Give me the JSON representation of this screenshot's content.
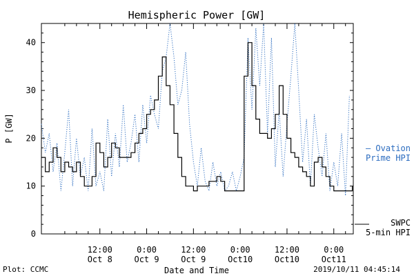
{
  "footer": {
    "plot_credit": "Plot: CCMC",
    "timestamp": "2019/10/11 04:45:14"
  },
  "chart_data": {
    "type": "line",
    "title": "Hemispheric Power [GW]",
    "xlabel": "Date and Time",
    "ylabel": "P [GW]",
    "ylim": [
      0,
      44
    ],
    "xlim": [
      "2019-10-07T21:00",
      "2019-10-11T05:00"
    ],
    "y_ticks": [
      0,
      10,
      20,
      30,
      40
    ],
    "x_ticks": [
      {
        "at": "2019-10-08T12:00",
        "line1": "12:00",
        "line2": "Oct 8"
      },
      {
        "at": "2019-10-09T00:00",
        "line1": "0:00",
        "line2": "Oct 9"
      },
      {
        "at": "2019-10-09T12:00",
        "line1": "12:00",
        "line2": "Oct 9"
      },
      {
        "at": "2019-10-10T00:00",
        "line1": "0:00",
        "line2": "Oct10"
      },
      {
        "at": "2019-10-10T12:00",
        "line1": "12:00",
        "line2": "Oct10"
      },
      {
        "at": "2019-10-11T00:00",
        "line1": "0:00",
        "line2": "Oct11"
      }
    ],
    "grid": false,
    "legend_placement": "right",
    "series": [
      {
        "name_line1": "Ovation",
        "name_line2": "Prime HPI",
        "legend_marker": "–",
        "color": "#2a6bbf",
        "style": "dotted",
        "x": [
          "2019-10-07T21:00",
          "2019-10-07T22:00",
          "2019-10-07T23:00",
          "2019-10-08T00:00",
          "2019-10-08T01:00",
          "2019-10-08T02:00",
          "2019-10-08T03:00",
          "2019-10-08T04:00",
          "2019-10-08T05:00",
          "2019-10-08T06:00",
          "2019-10-08T07:00",
          "2019-10-08T08:00",
          "2019-10-08T09:00",
          "2019-10-08T10:00",
          "2019-10-08T11:00",
          "2019-10-08T12:00",
          "2019-10-08T13:00",
          "2019-10-08T14:00",
          "2019-10-08T15:00",
          "2019-10-08T16:00",
          "2019-10-08T17:00",
          "2019-10-08T18:00",
          "2019-10-08T19:00",
          "2019-10-08T20:00",
          "2019-10-08T21:00",
          "2019-10-08T22:00",
          "2019-10-08T23:00",
          "2019-10-09T00:00",
          "2019-10-09T01:00",
          "2019-10-09T02:00",
          "2019-10-09T03:00",
          "2019-10-09T04:00",
          "2019-10-09T05:00",
          "2019-10-09T06:00",
          "2019-10-09T07:00",
          "2019-10-09T08:00",
          "2019-10-09T09:00",
          "2019-10-09T10:00",
          "2019-10-09T11:00",
          "2019-10-09T12:00",
          "2019-10-09T13:00",
          "2019-10-09T14:00",
          "2019-10-09T15:00",
          "2019-10-09T16:00",
          "2019-10-09T17:00",
          "2019-10-09T18:00",
          "2019-10-09T19:00",
          "2019-10-09T20:00",
          "2019-10-09T21:00",
          "2019-10-09T22:00",
          "2019-10-09T23:00",
          "2019-10-10T00:00",
          "2019-10-10T01:00",
          "2019-10-10T02:00",
          "2019-10-10T03:00",
          "2019-10-10T04:00",
          "2019-10-10T05:00",
          "2019-10-10T06:00",
          "2019-10-10T07:00",
          "2019-10-10T08:00",
          "2019-10-10T09:00",
          "2019-10-10T10:00",
          "2019-10-10T11:00",
          "2019-10-10T12:00",
          "2019-10-10T13:00",
          "2019-10-10T14:00",
          "2019-10-10T15:00",
          "2019-10-10T16:00",
          "2019-10-10T17:00",
          "2019-10-10T18:00",
          "2019-10-10T19:00",
          "2019-10-10T20:00",
          "2019-10-10T21:00",
          "2019-10-10T22:00",
          "2019-10-10T23:00",
          "2019-10-11T00:00",
          "2019-10-11T01:00",
          "2019-10-11T02:00",
          "2019-10-11T03:00",
          "2019-10-11T04:00"
        ],
        "values": [
          23,
          17,
          21,
          13,
          19,
          9,
          17,
          26,
          10,
          20,
          12,
          16,
          9,
          22,
          10,
          13,
          9,
          24,
          12,
          21,
          14,
          27,
          15,
          19,
          25,
          15,
          27,
          19,
          29,
          25,
          22,
          34,
          37,
          44,
          37,
          27,
          30,
          38,
          23,
          15,
          10,
          18,
          11,
          9,
          15,
          10,
          13,
          9,
          10,
          13,
          9,
          12,
          16,
          41,
          26,
          43,
          31,
          44,
          21,
          41,
          14,
          26,
          12,
          23,
          33,
          44,
          30,
          15,
          24,
          10,
          25,
          18,
          12,
          21,
          9,
          15,
          10,
          21,
          8,
          29
        ]
      },
      {
        "name_line1": "SWPC",
        "name_line2": "5-min HPI",
        "color": "#000000",
        "style": "solid",
        "x": [
          "2019-10-07T21:00",
          "2019-10-07T22:00",
          "2019-10-07T23:00",
          "2019-10-08T00:00",
          "2019-10-08T01:00",
          "2019-10-08T02:00",
          "2019-10-08T03:00",
          "2019-10-08T04:00",
          "2019-10-08T05:00",
          "2019-10-08T06:00",
          "2019-10-08T07:00",
          "2019-10-08T08:00",
          "2019-10-08T09:00",
          "2019-10-08T10:00",
          "2019-10-08T11:00",
          "2019-10-08T12:00",
          "2019-10-08T13:00",
          "2019-10-08T14:00",
          "2019-10-08T15:00",
          "2019-10-08T16:00",
          "2019-10-08T17:00",
          "2019-10-08T18:00",
          "2019-10-08T19:00",
          "2019-10-08T20:00",
          "2019-10-08T21:00",
          "2019-10-08T22:00",
          "2019-10-08T23:00",
          "2019-10-09T00:00",
          "2019-10-09T01:00",
          "2019-10-09T02:00",
          "2019-10-09T03:00",
          "2019-10-09T04:00",
          "2019-10-09T05:00",
          "2019-10-09T06:00",
          "2019-10-09T07:00",
          "2019-10-09T08:00",
          "2019-10-09T09:00",
          "2019-10-09T10:00",
          "2019-10-09T11:00",
          "2019-10-09T12:00",
          "2019-10-09T13:00",
          "2019-10-09T14:00",
          "2019-10-09T15:00",
          "2019-10-09T16:00",
          "2019-10-09T17:00",
          "2019-10-09T18:00",
          "2019-10-09T19:00",
          "2019-10-09T20:00",
          "2019-10-09T21:00",
          "2019-10-09T22:00",
          "2019-10-09T23:00",
          "2019-10-10T00:00",
          "2019-10-10T01:00",
          "2019-10-10T02:00",
          "2019-10-10T03:00",
          "2019-10-10T04:00",
          "2019-10-10T05:00",
          "2019-10-10T06:00",
          "2019-10-10T07:00",
          "2019-10-10T08:00",
          "2019-10-10T09:00",
          "2019-10-10T10:00",
          "2019-10-10T11:00",
          "2019-10-10T12:00",
          "2019-10-10T13:00",
          "2019-10-10T14:00",
          "2019-10-10T15:00",
          "2019-10-10T16:00",
          "2019-10-10T17:00",
          "2019-10-10T18:00",
          "2019-10-10T19:00",
          "2019-10-10T20:00",
          "2019-10-10T21:00",
          "2019-10-10T22:00",
          "2019-10-10T23:00",
          "2019-10-11T00:00",
          "2019-10-11T01:00",
          "2019-10-11T02:00",
          "2019-10-11T03:00",
          "2019-10-11T04:00",
          "2019-10-11T04:45"
        ],
        "values": [
          16,
          13,
          15,
          18,
          16,
          13,
          15,
          14,
          13,
          15,
          12,
          10,
          10,
          12,
          19,
          17,
          14,
          16,
          19,
          18,
          16,
          16,
          16,
          17,
          19,
          21,
          22,
          25,
          26,
          28,
          33,
          37,
          31,
          27,
          21,
          16,
          12,
          10,
          10,
          9,
          10,
          10,
          10,
          11,
          11,
          12,
          11,
          9,
          9,
          9,
          9,
          9,
          33,
          40,
          31,
          24,
          21,
          21,
          20,
          22,
          25,
          31,
          25,
          20,
          17,
          16,
          14,
          13,
          12,
          10,
          15,
          16,
          14,
          12,
          10,
          9,
          9,
          9,
          9,
          9,
          10
        ]
      }
    ]
  }
}
